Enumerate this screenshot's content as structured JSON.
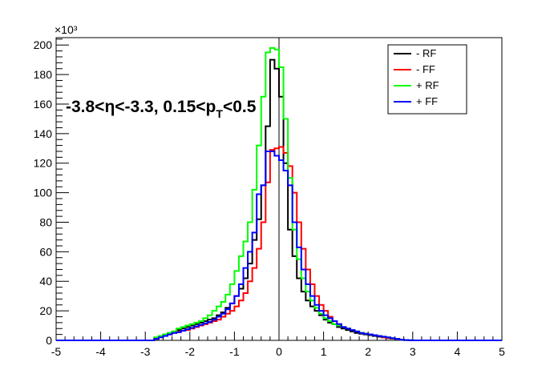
{
  "chart_data": {
    "type": "line",
    "title": "",
    "xlabel": "",
    "ylabel": "",
    "multiplier_label": "×10³",
    "annotation": {
      "pre": "-3.8<",
      "eta": "η",
      "mid": "<-3.3, 0.15<p",
      "sub": "T",
      "post": "<0.5"
    },
    "xlim": [
      -5,
      5
    ],
    "ylim": [
      0,
      205
    ],
    "xticks": [
      -5,
      -4,
      -3,
      -2,
      -1,
      0,
      1,
      2,
      3,
      4,
      5
    ],
    "yticks": [
      0,
      20,
      40,
      60,
      80,
      100,
      120,
      140,
      160,
      180,
      200
    ],
    "bin_width": 0.1,
    "x_bin_low_edges": [
      -2.8,
      -2.7,
      -2.6,
      -2.5,
      -2.4,
      -2.3,
      -2.2,
      -2.1,
      -2.0,
      -1.9,
      -1.8,
      -1.7,
      -1.6,
      -1.5,
      -1.4,
      -1.3,
      -1.2,
      -1.1,
      -1.0,
      -0.9,
      -0.8,
      -0.7,
      -0.6,
      -0.5,
      -0.4,
      -0.3,
      -0.2,
      -0.1,
      0.0,
      0.1,
      0.2,
      0.3,
      0.4,
      0.5,
      0.6,
      0.7,
      0.8,
      0.9,
      1.0,
      1.1,
      1.2,
      1.3,
      1.4,
      1.5,
      1.6,
      1.7,
      1.8,
      1.9,
      2.0,
      2.1,
      2.2,
      2.3,
      2.4,
      2.5,
      2.6,
      2.7,
      2.8,
      2.9
    ],
    "grid": false,
    "legend_position": "top-right",
    "series": [
      {
        "name": "- RF",
        "color": "#000000",
        "values": [
          1,
          3,
          4,
          5,
          6,
          7,
          8,
          9,
          10,
          11,
          12,
          13,
          14,
          15,
          17,
          19,
          22,
          25,
          30,
          35,
          42,
          52,
          68,
          82,
          105,
          145,
          190,
          184,
          165,
          120,
          75,
          57,
          42,
          33,
          27,
          23,
          20,
          17,
          14,
          12,
          11,
          9,
          8,
          7,
          6,
          5,
          4.5,
          4,
          3.5,
          3,
          2.5,
          2,
          1.5,
          1.2,
          1,
          0.5,
          0.2,
          0.1
        ]
      },
      {
        "name": "- FF",
        "color": "#ff0000",
        "values": [
          1,
          2,
          3,
          4,
          5,
          6,
          6.5,
          7,
          8,
          9,
          10,
          11,
          12,
          13,
          14,
          16,
          18,
          20,
          23,
          27,
          32,
          40,
          49,
          62,
          80,
          107,
          129,
          130,
          131,
          127,
          118,
          100,
          80,
          62,
          48,
          38,
          30,
          24,
          20,
          16,
          13,
          11,
          9,
          8,
          7,
          6,
          5,
          4.5,
          4,
          3.5,
          3,
          2,
          1.5,
          1.2,
          1,
          0.5,
          0.2,
          0.1
        ]
      },
      {
        "name": "+ RF",
        "color": "#00ff00",
        "values": [
          2,
          3,
          4,
          5,
          6,
          8,
          9,
          10,
          11,
          12,
          13,
          15,
          17,
          20,
          23,
          26,
          31,
          38,
          47,
          57,
          67,
          80,
          102,
          132,
          165,
          195,
          198,
          197,
          185,
          150,
          110,
          75,
          55,
          42,
          33,
          27,
          22,
          18,
          15,
          13,
          11,
          10,
          9,
          8,
          7,
          6,
          5,
          4.5,
          4,
          3.5,
          3,
          2.5,
          2,
          1.5,
          1,
          0.5,
          0.2,
          0.1
        ]
      },
      {
        "name": "+ FF",
        "color": "#0000ff",
        "values": [
          1,
          2,
          3,
          4,
          5,
          5.5,
          6.5,
          7.5,
          8.5,
          9.5,
          10.5,
          11.5,
          12.5,
          14,
          16,
          18,
          21,
          25,
          30,
          38,
          49,
          60,
          73,
          99,
          105,
          128,
          128,
          125,
          122,
          115,
          105,
          80,
          63,
          48,
          38,
          30,
          24,
          20,
          17,
          15,
          13,
          11,
          9,
          8,
          7,
          6,
          5,
          4.5,
          4,
          3.5,
          3,
          2.5,
          2,
          1.5,
          1,
          0.5,
          0.2,
          0.1
        ]
      }
    ]
  }
}
